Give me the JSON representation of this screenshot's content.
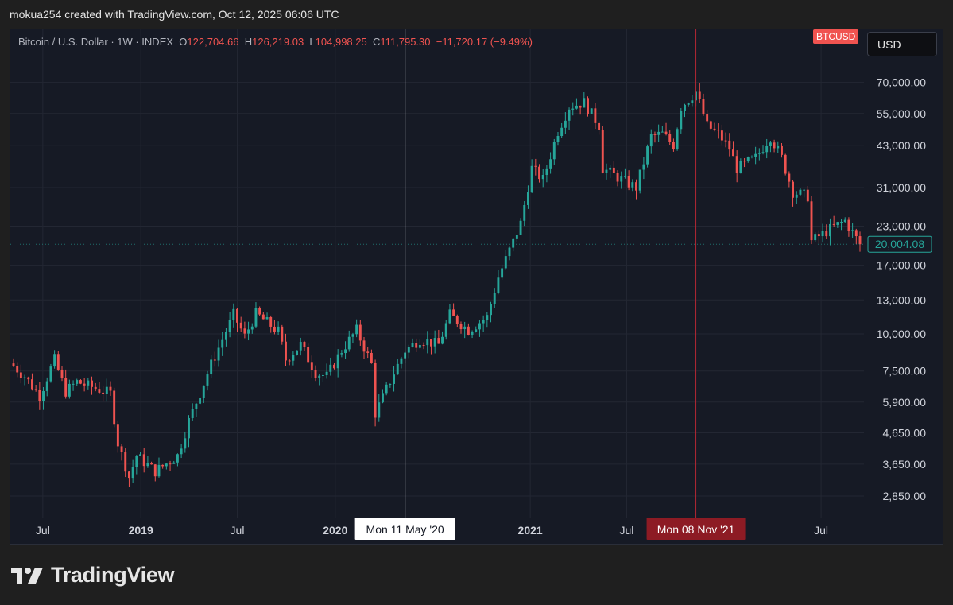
{
  "header": {
    "attribution": "mokua254 created with TradingView.com, Oct 12, 2025 06:06 UTC"
  },
  "legend": {
    "symbol_text": "Bitcoin / U.S. Dollar · 1W · INDEX",
    "o_label": "O",
    "o_value": "122,704.66",
    "h_label": "H",
    "h_value": "126,219.03",
    "l_label": "L",
    "l_value": "104,998.25",
    "c_label": "C",
    "c_value": "111,795.30",
    "change": "−11,720.17 (−9.49%)"
  },
  "ticker_badge": "BTCUSD",
  "currency_button": "USD",
  "footer": {
    "brand": "TradingView"
  },
  "colors": {
    "up": "#26a69a",
    "down": "#ef5350",
    "background": "#161a25",
    "grid": "#232733",
    "crosshair_red": "#b22833"
  },
  "chart_data": {
    "type": "candlestick",
    "yscale": "log",
    "y_ticks": [
      "70,000.00",
      "55,000.00",
      "43,000.00",
      "31,000.00",
      "23,000.00",
      "17,000.00",
      "13,000.00",
      "10,000.00",
      "7,500.00",
      "5,900.00",
      "4,650.00",
      "3,650.00",
      "2,850.00"
    ],
    "y_tick_values": [
      70000,
      55000,
      43000,
      31000,
      23000,
      17000,
      13000,
      10000,
      7500,
      5900,
      4650,
      3650,
      2850
    ],
    "ylim": [
      2400,
      85000
    ],
    "x_ticks": [
      {
        "label": "Jul",
        "date": "2018-07-01"
      },
      {
        "label": "2019",
        "date": "2019-01-01"
      },
      {
        "label": "Jul",
        "date": "2019-07-01"
      },
      {
        "label": "2020",
        "date": "2020-01-01"
      },
      {
        "label": "2021",
        "date": "2021-01-01"
      },
      {
        "label": "Jul",
        "date": "2021-07-01"
      },
      {
        "label": "Jul",
        "date": "2022-07-01"
      }
    ],
    "xlim": [
      "2018-05-07",
      "2022-09-12"
    ],
    "last_price_label": "20,004.08",
    "last_price": 20004.08,
    "crosshairs": [
      {
        "date": "2020-05-11",
        "label": "Mon 11 May '20",
        "style": "white"
      },
      {
        "date": "2021-11-08",
        "label": "Mon 08 Nov '21",
        "style": "red"
      }
    ],
    "anchors": [
      {
        "date": "2018-05-07",
        "price": 7800
      },
      {
        "date": "2018-05-28",
        "price": 7200
      },
      {
        "date": "2018-06-25",
        "price": 6200
      },
      {
        "date": "2018-07-23",
        "price": 8200
      },
      {
        "date": "2018-08-13",
        "price": 6400
      },
      {
        "date": "2018-09-03",
        "price": 6900
      },
      {
        "date": "2018-10-15",
        "price": 6500
      },
      {
        "date": "2018-11-05",
        "price": 6300
      },
      {
        "date": "2018-11-19",
        "price": 4300
      },
      {
        "date": "2018-12-10",
        "price": 3300
      },
      {
        "date": "2018-12-24",
        "price": 3900
      },
      {
        "date": "2019-01-28",
        "price": 3450
      },
      {
        "date": "2019-03-11",
        "price": 3900
      },
      {
        "date": "2019-04-01",
        "price": 5100
      },
      {
        "date": "2019-05-13",
        "price": 7900
      },
      {
        "date": "2019-06-24",
        "price": 11600
      },
      {
        "date": "2019-07-15",
        "price": 9800
      },
      {
        "date": "2019-08-05",
        "price": 11700
      },
      {
        "date": "2019-09-16",
        "price": 10200
      },
      {
        "date": "2019-09-30",
        "price": 8200
      },
      {
        "date": "2019-10-28",
        "price": 9200
      },
      {
        "date": "2019-11-25",
        "price": 7400
      },
      {
        "date": "2019-12-16",
        "price": 7200
      },
      {
        "date": "2020-01-13",
        "price": 8800
      },
      {
        "date": "2020-02-10",
        "price": 10300
      },
      {
        "date": "2020-03-09",
        "price": 7900
      },
      {
        "date": "2020-03-16",
        "price": 5400
      },
      {
        "date": "2020-04-20",
        "price": 7400
      },
      {
        "date": "2020-05-11",
        "price": 8800
      },
      {
        "date": "2020-06-08",
        "price": 9600
      },
      {
        "date": "2020-07-13",
        "price": 9200
      },
      {
        "date": "2020-08-03",
        "price": 11600
      },
      {
        "date": "2020-09-07",
        "price": 10300
      },
      {
        "date": "2020-10-12",
        "price": 11400
      },
      {
        "date": "2020-11-02",
        "price": 15500
      },
      {
        "date": "2020-12-14",
        "price": 23500
      },
      {
        "date": "2021-01-04",
        "price": 36000
      },
      {
        "date": "2021-01-25",
        "price": 33000
      },
      {
        "date": "2021-02-22",
        "price": 48000
      },
      {
        "date": "2021-03-15",
        "price": 58000
      },
      {
        "date": "2021-04-12",
        "price": 60000
      },
      {
        "date": "2021-05-10",
        "price": 50000
      },
      {
        "date": "2021-05-17",
        "price": 36000
      },
      {
        "date": "2021-06-21",
        "price": 33000
      },
      {
        "date": "2021-07-19",
        "price": 31000
      },
      {
        "date": "2021-08-16",
        "price": 46000
      },
      {
        "date": "2021-09-06",
        "price": 47000
      },
      {
        "date": "2021-09-27",
        "price": 43000
      },
      {
        "date": "2021-10-11",
        "price": 58000
      },
      {
        "date": "2021-11-08",
        "price": 65000
      },
      {
        "date": "2021-11-29",
        "price": 50000
      },
      {
        "date": "2021-12-20",
        "price": 47000
      },
      {
        "date": "2022-01-10",
        "price": 42000
      },
      {
        "date": "2022-01-24",
        "price": 36000
      },
      {
        "date": "2022-02-28",
        "price": 39000
      },
      {
        "date": "2022-03-28",
        "price": 46000
      },
      {
        "date": "2022-04-18",
        "price": 39000
      },
      {
        "date": "2022-05-09",
        "price": 30000
      },
      {
        "date": "2022-06-06",
        "price": 29000
      },
      {
        "date": "2022-06-13",
        "price": 20500
      },
      {
        "date": "2022-07-18",
        "price": 22500
      },
      {
        "date": "2022-08-15",
        "price": 24000
      },
      {
        "date": "2022-09-12",
        "price": 20004
      }
    ]
  }
}
